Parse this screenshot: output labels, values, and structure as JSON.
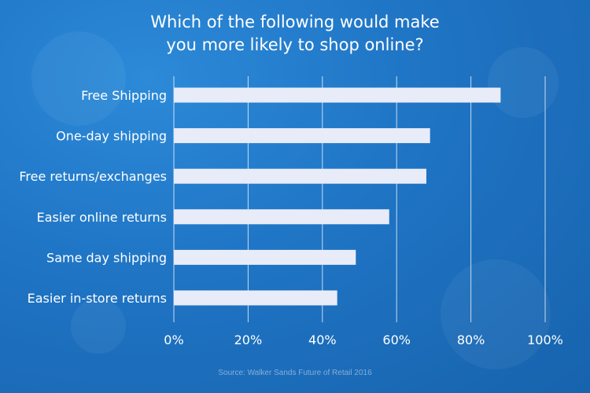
{
  "colors": {
    "bar": "#e8ecf8",
    "grid": "#ffffff",
    "text": "#ffffff",
    "background": "#1f74c4"
  },
  "chart_data": {
    "type": "bar",
    "orientation": "horizontal",
    "title": [
      "Which of the following would make",
      "you more likely to shop online?"
    ],
    "categories": [
      "Free Shipping",
      "One-day shipping",
      "Free returns/exchanges",
      "Easier online returns",
      "Same day shipping",
      "Easier in-store returns"
    ],
    "values": [
      88,
      69,
      68,
      58,
      49,
      44
    ],
    "xlim": [
      0,
      100
    ],
    "xticks": [
      0,
      20,
      40,
      60,
      80,
      100
    ],
    "xtick_labels": [
      "0%",
      "20%",
      "40%",
      "60%",
      "80%",
      "100%"
    ],
    "grid": true,
    "legend": "none"
  },
  "source": "Source: Walker Sands Future of Retail 2016"
}
